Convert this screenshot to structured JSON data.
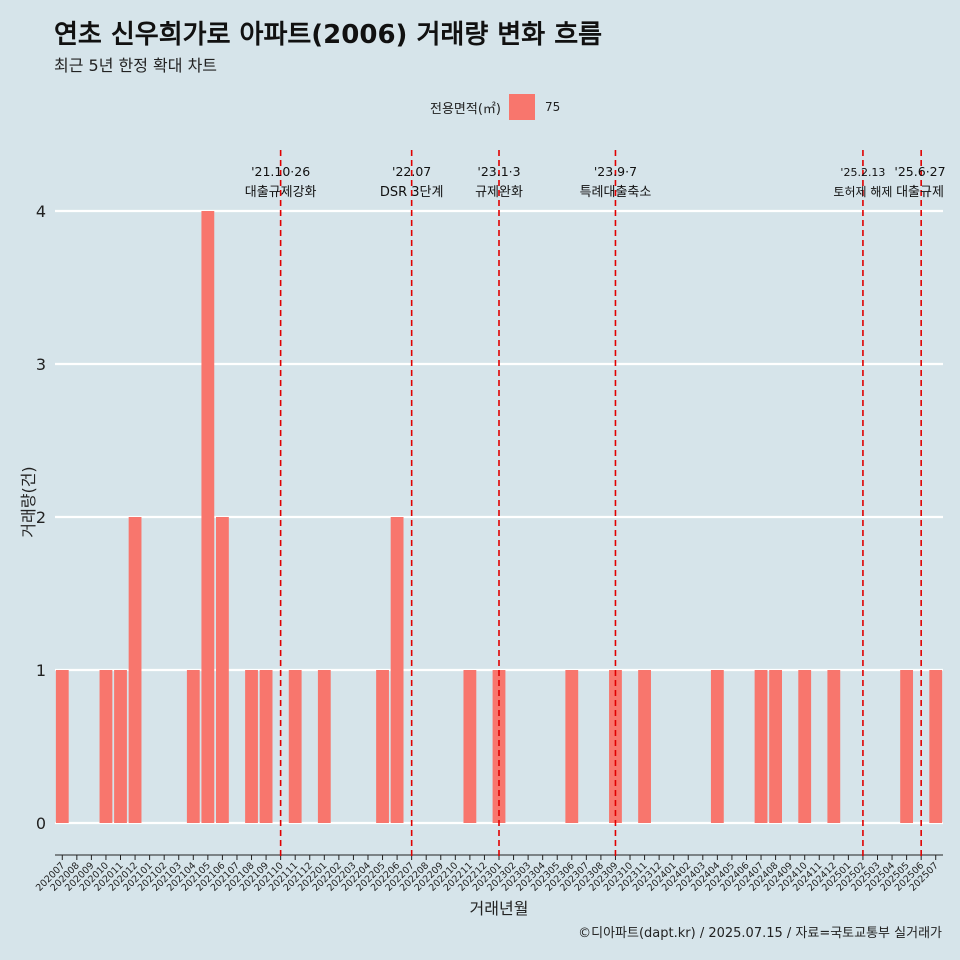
{
  "title": "연초 신우희가로 아파트(2006) 거래량 변화 흐름",
  "subtitle": "최근 5년 한정 확대 차트",
  "caption": "©디아파트(dapt.kr) / 2025.07.15 / 자료=국토교통부 실거래가",
  "colors": {
    "bar": "#f8766d",
    "event_line": "#e00000",
    "background": "#d6e4ea",
    "grid": "#ffffff"
  },
  "legend": {
    "title": "전용면적(㎡)",
    "entry": "75"
  },
  "chart_data": {
    "type": "bar",
    "xlabel": "거래년월",
    "ylabel": "거래량(건)",
    "ylim": [
      0,
      4
    ],
    "yticks": [
      0,
      1,
      2,
      3,
      4
    ],
    "grid": true,
    "legend_position": "top",
    "categories": [
      "202007",
      "202008",
      "202009",
      "202010",
      "202011",
      "202012",
      "202101",
      "202102",
      "202103",
      "202104",
      "202105",
      "202106",
      "202107",
      "202108",
      "202109",
      "202110",
      "202111",
      "202112",
      "202201",
      "202202",
      "202203",
      "202204",
      "202205",
      "202206",
      "202207",
      "202208",
      "202209",
      "202210",
      "202211",
      "202212",
      "202301",
      "202302",
      "202303",
      "202304",
      "202305",
      "202306",
      "202307",
      "202308",
      "202309",
      "202310",
      "202311",
      "202312",
      "202401",
      "202402",
      "202403",
      "202404",
      "202405",
      "202406",
      "202407",
      "202408",
      "202409",
      "202410",
      "202411",
      "202412",
      "202501",
      "202502",
      "202503",
      "202504",
      "202505",
      "202506",
      "202507"
    ],
    "series": [
      {
        "name": "75",
        "values": [
          1,
          0,
          0,
          1,
          1,
          2,
          0,
          0,
          0,
          1,
          4,
          2,
          0,
          1,
          1,
          0,
          1,
          0,
          1,
          0,
          0,
          0,
          1,
          2,
          0,
          0,
          0,
          0,
          1,
          0,
          1,
          0,
          0,
          0,
          0,
          1,
          0,
          0,
          1,
          0,
          1,
          0,
          0,
          0,
          0,
          1,
          0,
          0,
          1,
          1,
          0,
          1,
          0,
          1,
          0,
          0,
          0,
          0,
          1,
          0,
          1
        ]
      }
    ],
    "annotations": [
      {
        "x": "202110",
        "date": "'21.10·26",
        "label": "대출규제강화"
      },
      {
        "x": "202207",
        "date": "'22.07",
        "label": "DSR 3단계"
      },
      {
        "x": "202301",
        "date": "'23.1·3",
        "label": "규제완화"
      },
      {
        "x": "202309",
        "date": "'23.9·7",
        "label": "특례대출축소"
      },
      {
        "x": "202502",
        "date": "'25.2.13",
        "label": "토허제 해제"
      },
      {
        "x": "202506",
        "date": "'25.6·27",
        "label": "대출규제"
      }
    ]
  }
}
